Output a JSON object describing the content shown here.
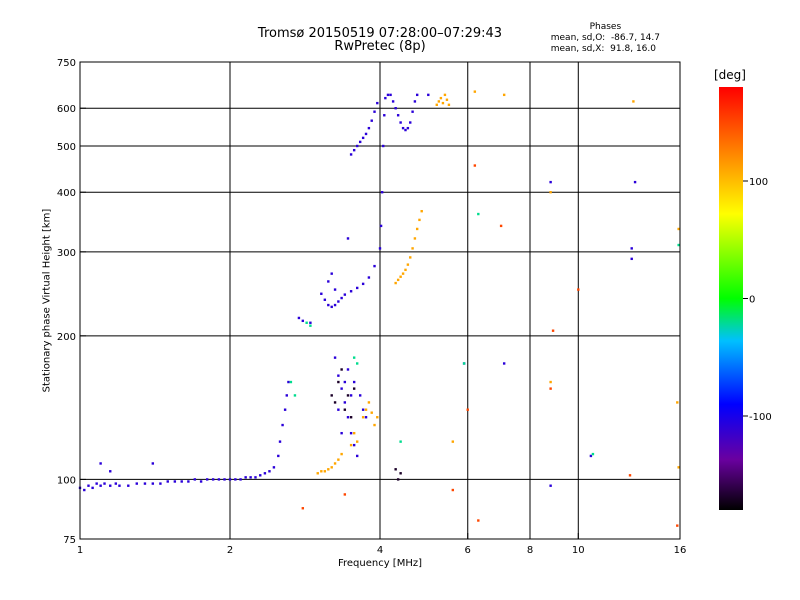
{
  "title": "Tromsø 20150519 07:28:00–07:29:43",
  "subtitle": "RwPretec (8p)",
  "phases": {
    "heading": "Phases",
    "line1": "mean, sd,O:  -86.7, 14.7",
    "line2": "mean, sd,X:  91.8, 16.0"
  },
  "chart_data": {
    "type": "scatter",
    "xlabel": "Frequency [MHz]",
    "ylabel": "Stationary phase Virtual Height [km]",
    "x_scale": "log",
    "y_scale": "log",
    "xlim": [
      1,
      16
    ],
    "ylim": [
      75,
      750
    ],
    "x_ticks": [
      1,
      2,
      4,
      6,
      8,
      10,
      16
    ],
    "y_ticks": [
      75,
      100,
      200,
      300,
      400,
      500,
      600,
      750
    ],
    "grid_x": [
      2,
      4,
      6,
      8,
      10
    ],
    "grid_y": [
      100,
      200,
      300,
      400,
      500,
      600
    ],
    "colorbar": {
      "label": "[deg]",
      "range": [
        -180,
        180
      ],
      "ticks": [
        -100,
        0,
        100
      ]
    },
    "series": [
      {
        "phase_deg": -110,
        "points": [
          [
            1.0,
            96
          ],
          [
            1.02,
            95
          ],
          [
            1.04,
            97
          ],
          [
            1.06,
            96
          ],
          [
            1.08,
            98
          ],
          [
            1.1,
            97
          ],
          [
            1.12,
            98
          ],
          [
            1.15,
            97
          ],
          [
            1.18,
            98
          ],
          [
            1.2,
            97
          ],
          [
            1.25,
            97
          ],
          [
            1.3,
            98
          ],
          [
            1.35,
            98
          ],
          [
            1.4,
            98
          ],
          [
            1.45,
            98
          ],
          [
            1.5,
            99
          ],
          [
            1.55,
            99
          ],
          [
            1.6,
            99
          ],
          [
            1.65,
            99
          ],
          [
            1.7,
            100
          ],
          [
            1.75,
            99
          ],
          [
            1.8,
            100
          ],
          [
            1.85,
            100
          ],
          [
            1.9,
            100
          ],
          [
            1.95,
            100
          ],
          [
            2.0,
            100
          ],
          [
            2.05,
            100
          ],
          [
            2.1,
            100
          ],
          [
            2.15,
            101
          ],
          [
            2.2,
            101
          ],
          [
            2.25,
            101
          ],
          [
            2.3,
            102
          ],
          [
            2.35,
            103
          ],
          [
            2.4,
            104
          ],
          [
            2.45,
            106
          ],
          [
            2.5,
            112
          ],
          [
            2.52,
            120
          ],
          [
            2.55,
            130
          ],
          [
            2.58,
            140
          ],
          [
            2.6,
            150
          ],
          [
            2.62,
            160
          ],
          [
            2.75,
            218
          ],
          [
            2.8,
            215
          ],
          [
            2.9,
            213
          ],
          [
            3.05,
            245
          ],
          [
            3.1,
            238
          ],
          [
            3.15,
            232
          ],
          [
            3.2,
            230
          ],
          [
            3.25,
            232
          ],
          [
            3.3,
            236
          ],
          [
            3.35,
            240
          ],
          [
            3.4,
            244
          ],
          [
            3.5,
            248
          ],
          [
            3.6,
            252
          ],
          [
            3.7,
            257
          ],
          [
            3.8,
            265
          ],
          [
            3.9,
            280
          ],
          [
            4.0,
            305
          ],
          [
            4.02,
            340
          ],
          [
            4.04,
            400
          ],
          [
            4.06,
            500
          ],
          [
            4.08,
            580
          ],
          [
            4.1,
            630
          ],
          [
            4.15,
            640
          ],
          [
            3.2,
            270
          ],
          [
            3.15,
            260
          ],
          [
            3.25,
            250
          ],
          [
            3.45,
            320
          ],
          [
            3.5,
            480
          ],
          [
            3.55,
            490
          ],
          [
            3.6,
            500
          ],
          [
            3.65,
            510
          ],
          [
            3.7,
            520
          ],
          [
            3.75,
            530
          ],
          [
            3.8,
            545
          ],
          [
            3.85,
            565
          ],
          [
            3.9,
            590
          ],
          [
            3.95,
            615
          ],
          [
            4.2,
            640
          ],
          [
            4.25,
            620
          ],
          [
            4.3,
            600
          ],
          [
            4.35,
            580
          ],
          [
            4.4,
            560
          ],
          [
            4.45,
            545
          ],
          [
            4.5,
            540
          ],
          [
            4.55,
            545
          ],
          [
            4.6,
            560
          ],
          [
            4.65,
            590
          ],
          [
            4.7,
            620
          ],
          [
            4.75,
            640
          ],
          [
            5.0,
            640
          ],
          [
            3.25,
            180
          ],
          [
            3.3,
            165
          ],
          [
            3.35,
            155
          ],
          [
            3.4,
            145
          ],
          [
            3.45,
            135
          ],
          [
            3.5,
            125
          ],
          [
            3.55,
            118
          ],
          [
            3.6,
            112
          ],
          [
            3.35,
            125
          ],
          [
            3.4,
            160
          ],
          [
            3.5,
            150
          ],
          [
            3.3,
            140
          ],
          [
            3.65,
            150
          ],
          [
            3.7,
            140
          ],
          [
            3.75,
            135
          ],
          [
            3.45,
            170
          ],
          [
            3.55,
            160
          ],
          [
            1.1,
            108
          ],
          [
            1.15,
            104
          ],
          [
            1.4,
            108
          ],
          [
            5.9,
            175
          ],
          [
            7.1,
            175
          ],
          [
            8.8,
            420
          ],
          [
            8.8,
            97
          ],
          [
            10.6,
            112
          ],
          [
            12.8,
            305
          ],
          [
            12.8,
            290
          ],
          [
            13.0,
            420
          ]
        ]
      },
      {
        "phase_deg": 110,
        "points": [
          [
            3.0,
            103
          ],
          [
            3.05,
            104
          ],
          [
            3.1,
            104
          ],
          [
            3.15,
            105
          ],
          [
            3.2,
            106
          ],
          [
            3.25,
            108
          ],
          [
            3.3,
            110
          ],
          [
            3.35,
            113
          ],
          [
            3.5,
            118
          ],
          [
            3.55,
            125
          ],
          [
            3.6,
            120
          ],
          [
            3.7,
            135
          ],
          [
            3.75,
            140
          ],
          [
            3.8,
            145
          ],
          [
            3.85,
            138
          ],
          [
            3.9,
            130
          ],
          [
            3.95,
            135
          ],
          [
            4.3,
            258
          ],
          [
            4.35,
            262
          ],
          [
            4.4,
            266
          ],
          [
            4.45,
            270
          ],
          [
            4.5,
            275
          ],
          [
            4.55,
            282
          ],
          [
            4.6,
            292
          ],
          [
            4.65,
            305
          ],
          [
            4.7,
            320
          ],
          [
            4.75,
            335
          ],
          [
            4.8,
            350
          ],
          [
            4.85,
            365
          ],
          [
            5.2,
            610
          ],
          [
            5.25,
            620
          ],
          [
            5.3,
            630
          ],
          [
            5.35,
            615
          ],
          [
            5.4,
            640
          ],
          [
            5.45,
            625
          ],
          [
            5.5,
            610
          ],
          [
            5.6,
            120
          ],
          [
            6.2,
            650
          ],
          [
            7.1,
            640
          ],
          [
            8.8,
            400
          ],
          [
            8.8,
            160
          ],
          [
            12.9,
            620
          ],
          [
            15.9,
            335
          ],
          [
            15.8,
            145
          ],
          [
            15.9,
            106
          ]
        ]
      },
      {
        "phase_deg": 150,
        "points": [
          [
            2.8,
            87
          ],
          [
            3.4,
            93
          ],
          [
            5.6,
            95
          ],
          [
            6.0,
            140
          ],
          [
            6.2,
            455
          ],
          [
            6.3,
            82
          ],
          [
            7.0,
            340
          ],
          [
            8.9,
            205
          ],
          [
            8.8,
            155
          ],
          [
            10.0,
            250
          ],
          [
            12.7,
            102
          ],
          [
            15.8,
            80
          ]
        ]
      },
      {
        "phase_deg": -20,
        "points": [
          [
            2.65,
            160
          ],
          [
            2.7,
            150
          ],
          [
            2.85,
            213
          ],
          [
            2.9,
            210
          ],
          [
            3.55,
            180
          ],
          [
            3.6,
            175
          ],
          [
            4.4,
            120
          ],
          [
            5.9,
            175
          ],
          [
            6.3,
            360
          ],
          [
            10.7,
            113
          ],
          [
            15.9,
            310
          ]
        ]
      },
      {
        "phase_deg": -170,
        "points": [
          [
            3.2,
            150
          ],
          [
            3.25,
            145
          ],
          [
            3.3,
            160
          ],
          [
            3.35,
            170
          ],
          [
            3.4,
            140
          ],
          [
            3.45,
            150
          ],
          [
            3.5,
            135
          ],
          [
            3.55,
            155
          ],
          [
            4.3,
            105
          ],
          [
            4.35,
            100
          ],
          [
            4.4,
            103
          ]
        ]
      }
    ]
  }
}
